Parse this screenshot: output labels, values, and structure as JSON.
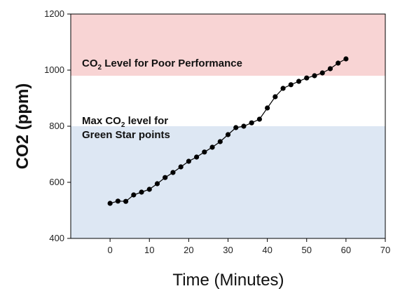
{
  "chart_data": {
    "type": "line",
    "xlabel": "Time (Minutes)",
    "ylabel": "CO2 (ppm)",
    "xlim": [
      -10,
      70
    ],
    "ylim": [
      400,
      1200
    ],
    "xticks": [
      0,
      10,
      20,
      30,
      40,
      50,
      60,
      70
    ],
    "yticks": [
      400,
      600,
      800,
      1000,
      1200
    ],
    "grid": false,
    "bands": [
      {
        "from": 980,
        "to": 1200,
        "color": "#f8d4d4"
      },
      {
        "from": 400,
        "to": 800,
        "color": "#dde7f3"
      }
    ],
    "annotations": [
      {
        "lines": [
          {
            "pre": "CO",
            "sub": "2",
            "post": " Level for Poor Performance"
          }
        ]
      },
      {
        "lines": [
          {
            "pre": "Max CO",
            "sub": "2",
            "post": " level for"
          },
          {
            "pre": "Green Star points",
            "sub": "",
            "post": ""
          }
        ]
      }
    ],
    "series": [
      {
        "color": "#000000",
        "x": [
          0,
          2,
          4,
          6,
          8,
          10,
          12,
          14,
          16,
          18,
          20,
          22,
          24,
          26,
          28,
          30,
          32,
          34,
          36,
          38,
          40,
          42,
          44,
          46,
          48,
          50,
          52,
          54,
          56,
          58,
          60
        ],
        "y": [
          525,
          533,
          532,
          555,
          565,
          575,
          595,
          617,
          635,
          655,
          675,
          690,
          708,
          725,
          745,
          770,
          795,
          800,
          812,
          825,
          865,
          905,
          935,
          948,
          960,
          972,
          980,
          990,
          1005,
          1025,
          1040
        ]
      }
    ]
  }
}
